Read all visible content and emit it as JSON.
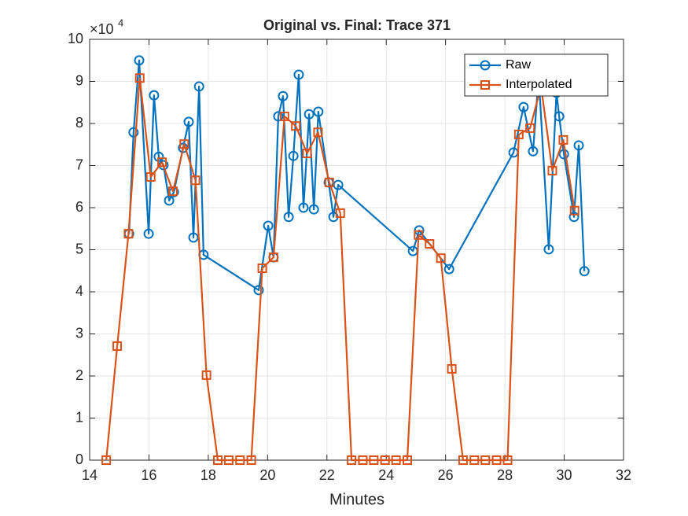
{
  "chart_data": {
    "type": "line",
    "title": "Original vs. Final: Trace 371",
    "x_label": "Minutes",
    "y_multiplier": {
      "base": "×10",
      "power": "4"
    },
    "xlim": [
      14,
      32
    ],
    "xticks": [
      14,
      16,
      18,
      20,
      22,
      24,
      26,
      28,
      30,
      32
    ],
    "ylim": [
      0,
      100000
    ],
    "yticks": [
      0,
      {
        "value": 10000,
        "label": "1"
      },
      {
        "value": 20000,
        "label": "2"
      },
      {
        "value": 30000,
        "label": "3"
      },
      {
        "value": 40000,
        "label": "4"
      },
      {
        "value": 50000,
        "label": "5"
      },
      {
        "value": 60000,
        "label": "6"
      },
      {
        "value": 70000,
        "label": "7"
      },
      {
        "value": 80000,
        "label": "8"
      },
      {
        "value": 90000,
        "label": "9"
      },
      {
        "value": 100000,
        "label": "10"
      }
    ],
    "grid": true,
    "legend_position": "northeast",
    "series": [
      {
        "name": "Raw",
        "color": "#0072BD",
        "marker": "circle",
        "x": [
          15.33,
          15.48,
          15.67,
          15.99,
          16.17,
          16.33,
          16.49,
          16.68,
          16.84,
          17.15,
          17.34,
          17.5,
          17.69,
          17.84,
          19.7,
          20.02,
          20.2,
          20.36,
          20.52,
          20.71,
          20.87,
          21.05,
          21.21,
          21.4,
          21.56,
          21.71,
          22.06,
          22.22,
          22.38,
          24.9,
          25.11,
          26.12,
          28.29,
          28.63,
          28.95,
          29.14,
          29.48,
          29.74,
          29.83,
          29.99,
          30.33,
          30.49,
          30.68
        ],
        "values": [
          53800,
          77900,
          95000,
          53800,
          86700,
          72100,
          70100,
          61700,
          63700,
          74200,
          80400,
          52900,
          88800,
          48800,
          40400,
          55700,
          48200,
          81700,
          86500,
          57800,
          72300,
          91600,
          60000,
          82200,
          59600,
          82800,
          66000,
          57800,
          65400,
          49700,
          54600,
          45400,
          73100,
          83900,
          73400,
          91200,
          50100,
          87300,
          81700,
          72700,
          57800,
          74800,
          44900
        ]
      },
      {
        "name": "Interpolated",
        "color": "#D95319",
        "marker": "square",
        "x": [
          14.56,
          14.93,
          15.31,
          15.69,
          16.06,
          16.44,
          16.81,
          17.19,
          17.57,
          17.94,
          18.32,
          18.69,
          19.07,
          19.45,
          19.82,
          20.2,
          20.57,
          20.95,
          21.33,
          21.7,
          22.08,
          22.45,
          22.83,
          23.21,
          23.58,
          23.96,
          24.33,
          24.71,
          25.09,
          25.46,
          25.84,
          26.21,
          26.59,
          26.97,
          27.34,
          27.72,
          28.09,
          28.47,
          28.85,
          29.22,
          29.6,
          29.97,
          30.35
        ],
        "values": [
          0,
          27100,
          53800,
          90800,
          67300,
          70800,
          63900,
          75100,
          66500,
          20200,
          0,
          0,
          0,
          0,
          45600,
          48200,
          81700,
          79400,
          72900,
          77900,
          66000,
          58700,
          0,
          0,
          0,
          0,
          0,
          0,
          53500,
          51400,
          48000,
          21700,
          0,
          0,
          0,
          0,
          0,
          77400,
          78900,
          88800,
          68800,
          76100,
          59300
        ]
      }
    ]
  }
}
